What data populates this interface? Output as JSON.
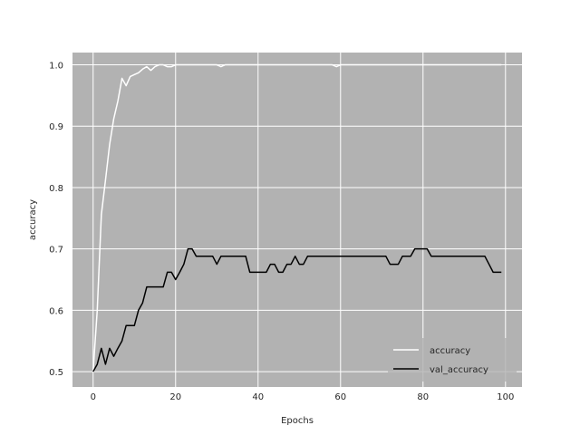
{
  "chart_data": {
    "type": "line",
    "title": "",
    "xlabel": "Epochs",
    "ylabel": "accuracy",
    "xlim": [
      -5,
      104
    ],
    "ylim": [
      0.475,
      1.02
    ],
    "xticks": [
      0,
      20,
      40,
      60,
      80,
      100
    ],
    "xtick_labels": [
      "0",
      "20",
      "40",
      "60",
      "80",
      "100"
    ],
    "yticks": [
      0.5,
      0.6,
      0.7,
      0.8,
      0.9,
      1.0
    ],
    "ytick_labels": [
      "0.5",
      "0.6",
      "0.7",
      "0.8",
      "0.9",
      "1.0"
    ],
    "grid": true,
    "legend_position": "lower-right",
    "plot_background": "#b2b2b2",
    "grid_color": "#ffffff",
    "series": [
      {
        "name": "accuracy",
        "color": "#ffffff",
        "values": [
          0.5,
          0.6,
          0.756,
          0.812,
          0.87,
          0.912,
          0.941,
          0.978,
          0.966,
          0.981,
          0.984,
          0.987,
          0.993,
          0.997,
          0.991,
          0.997,
          1.0,
          1.0,
          0.997,
          0.997,
          1.0,
          1.0,
          1.0,
          1.0,
          1.0,
          1.0,
          1.0,
          1.0,
          1.0,
          1.0,
          1.0,
          0.997,
          1.0,
          1.0,
          1.0,
          1.0,
          1.0,
          1.0,
          1.0,
          1.0,
          1.0,
          1.0,
          1.0,
          1.0,
          1.0,
          1.0,
          1.0,
          1.0,
          1.0,
          1.0,
          1.0,
          1.0,
          1.0,
          1.0,
          1.0,
          1.0,
          1.0,
          1.0,
          1.0,
          0.997,
          1.0,
          1.0,
          1.0,
          1.0,
          1.0,
          1.0,
          1.0,
          1.0,
          1.0,
          1.0,
          1.0,
          1.0,
          1.0,
          1.0,
          1.0,
          1.0,
          1.0,
          1.0,
          1.0,
          1.0,
          1.0,
          1.0,
          1.0,
          1.0,
          1.0,
          1.0,
          1.0,
          1.0,
          1.0,
          1.0,
          1.0,
          1.0,
          1.0,
          1.0,
          1.0,
          1.0,
          1.0,
          1.0,
          1.0,
          1.0
        ]
      },
      {
        "name": "val_accuracy",
        "color": "#000000",
        "values": [
          0.5,
          0.512,
          0.538,
          0.512,
          0.538,
          0.525,
          0.538,
          0.55,
          0.575,
          0.575,
          0.575,
          0.6,
          0.612,
          0.638,
          0.638,
          0.638,
          0.638,
          0.638,
          0.662,
          0.662,
          0.65,
          0.662,
          0.675,
          0.7,
          0.7,
          0.688,
          0.688,
          0.688,
          0.688,
          0.688,
          0.675,
          0.688,
          0.688,
          0.688,
          0.688,
          0.688,
          0.688,
          0.688,
          0.662,
          0.662,
          0.662,
          0.662,
          0.662,
          0.675,
          0.675,
          0.662,
          0.662,
          0.675,
          0.675,
          0.688,
          0.675,
          0.675,
          0.688,
          0.688,
          0.688,
          0.688,
          0.688,
          0.688,
          0.688,
          0.688,
          0.688,
          0.688,
          0.688,
          0.688,
          0.688,
          0.688,
          0.688,
          0.688,
          0.688,
          0.688,
          0.688,
          0.688,
          0.675,
          0.675,
          0.675,
          0.688,
          0.688,
          0.688,
          0.7,
          0.7,
          0.7,
          0.7,
          0.688,
          0.688,
          0.688,
          0.688,
          0.688,
          0.688,
          0.688,
          0.688,
          0.688,
          0.688,
          0.688,
          0.688,
          0.688,
          0.688,
          0.675,
          0.662,
          0.662,
          0.662
        ]
      }
    ]
  }
}
